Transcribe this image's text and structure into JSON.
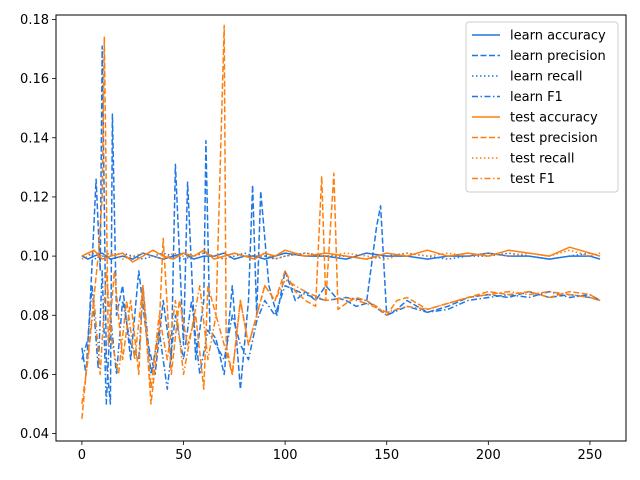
{
  "chart_data": {
    "type": "line",
    "xlim": [
      -12.75,
      267.75
    ],
    "ylim": [
      0.0375,
      0.1815
    ],
    "x_ticks": [
      0,
      50,
      100,
      150,
      200,
      250
    ],
    "y_ticks": [
      0.04,
      0.06,
      0.08,
      0.1,
      0.12,
      0.14,
      0.16,
      0.18
    ],
    "grid": false,
    "legend_position": "upper right",
    "colors": {
      "learn": "#1f77e4",
      "test": "#ff7f0e"
    },
    "series": [
      {
        "name": "learn accuracy",
        "color": "#1f77e4",
        "style": "solid",
        "x": [
          0,
          3,
          6,
          10,
          14,
          20,
          25,
          30,
          35,
          40,
          45,
          50,
          55,
          60,
          65,
          70,
          75,
          80,
          85,
          90,
          95,
          100,
          110,
          120,
          130,
          140,
          150,
          160,
          170,
          180,
          190,
          200,
          210,
          220,
          230,
          240,
          250,
          255
        ],
        "y": [
          0.1,
          0.099,
          0.1,
          0.101,
          0.099,
          0.1,
          0.099,
          0.101,
          0.1,
          0.099,
          0.1,
          0.101,
          0.099,
          0.1,
          0.1,
          0.101,
          0.099,
          0.1,
          0.1,
          0.099,
          0.1,
          0.101,
          0.1,
          0.1,
          0.099,
          0.101,
          0.1,
          0.1,
          0.099,
          0.1,
          0.1,
          0.101,
          0.1,
          0.1,
          0.099,
          0.1,
          0.1,
          0.099
        ]
      },
      {
        "name": "learn precision",
        "color": "#1f77e4",
        "style": "dashed",
        "x": [
          0,
          2,
          4,
          7,
          9,
          10,
          12,
          14,
          15,
          17,
          20,
          24,
          28,
          32,
          36,
          40,
          44,
          46,
          50,
          52,
          56,
          60,
          61,
          63,
          66,
          70,
          74,
          78,
          82,
          84,
          86,
          88,
          92,
          96,
          100,
          105,
          110,
          115,
          120,
          125,
          130,
          135,
          140,
          145,
          147,
          150,
          155,
          160,
          170,
          180,
          190,
          200,
          210,
          220,
          230,
          240,
          250,
          255
        ],
        "y": [
          0.069,
          0.06,
          0.083,
          0.126,
          0.095,
          0.171,
          0.065,
          0.05,
          0.148,
          0.08,
          0.09,
          0.065,
          0.095,
          0.072,
          0.06,
          0.085,
          0.065,
          0.131,
          0.07,
          0.125,
          0.065,
          0.085,
          0.139,
          0.075,
          0.072,
          0.06,
          0.09,
          0.055,
          0.085,
          0.124,
          0.08,
          0.122,
          0.09,
          0.08,
          0.095,
          0.085,
          0.088,
          0.085,
          0.09,
          0.086,
          0.085,
          0.083,
          0.084,
          0.11,
          0.117,
          0.08,
          0.082,
          0.085,
          0.081,
          0.083,
          0.086,
          0.087,
          0.086,
          0.088,
          0.086,
          0.087,
          0.086,
          0.085
        ]
      },
      {
        "name": "learn recall",
        "color": "#1f77e4",
        "style": "dotted",
        "x": [
          0,
          3,
          6,
          10,
          14,
          20,
          25,
          30,
          35,
          40,
          45,
          50,
          55,
          60,
          65,
          70,
          75,
          80,
          85,
          90,
          95,
          100,
          110,
          120,
          130,
          140,
          150,
          160,
          170,
          180,
          190,
          200,
          210,
          220,
          230,
          240,
          250,
          255
        ],
        "y": [
          0.1,
          0.101,
          0.099,
          0.1,
          0.1,
          0.101,
          0.1,
          0.099,
          0.1,
          0.101,
          0.1,
          0.099,
          0.1,
          0.101,
          0.1,
          0.099,
          0.1,
          0.101,
          0.1,
          0.1,
          0.099,
          0.1,
          0.101,
          0.1,
          0.1,
          0.099,
          0.1,
          0.101,
          0.1,
          0.099,
          0.1,
          0.1,
          0.101,
          0.1,
          0.099,
          0.1,
          0.101,
          0.1
        ]
      },
      {
        "name": "learn F1",
        "color": "#1f77e4",
        "style": "dashdot",
        "x": [
          0,
          3,
          5,
          8,
          10,
          12,
          14,
          17,
          20,
          24,
          28,
          30,
          34,
          38,
          42,
          46,
          50,
          54,
          58,
          62,
          66,
          70,
          74,
          78,
          82,
          86,
          90,
          95,
          100,
          110,
          120,
          130,
          140,
          150,
          160,
          170,
          180,
          190,
          200,
          210,
          220,
          230,
          240,
          250,
          255
        ],
        "y": [
          0.065,
          0.072,
          0.09,
          0.062,
          0.095,
          0.05,
          0.08,
          0.06,
          0.085,
          0.07,
          0.065,
          0.09,
          0.06,
          0.075,
          0.055,
          0.08,
          0.065,
          0.085,
          0.06,
          0.075,
          0.07,
          0.065,
          0.08,
          0.07,
          0.065,
          0.078,
          0.085,
          0.08,
          0.09,
          0.087,
          0.085,
          0.086,
          0.085,
          0.08,
          0.083,
          0.081,
          0.082,
          0.085,
          0.086,
          0.087,
          0.086,
          0.088,
          0.086,
          0.087,
          0.085
        ]
      },
      {
        "name": "test accuracy",
        "color": "#ff7f0e",
        "style": "solid",
        "x": [
          0,
          3,
          6,
          10,
          14,
          20,
          25,
          30,
          35,
          40,
          45,
          50,
          55,
          60,
          65,
          70,
          75,
          80,
          85,
          90,
          95,
          100,
          110,
          120,
          130,
          140,
          150,
          160,
          170,
          180,
          190,
          200,
          210,
          220,
          230,
          240,
          250,
          255
        ],
        "y": [
          0.1,
          0.101,
          0.102,
          0.099,
          0.1,
          0.101,
          0.098,
          0.1,
          0.102,
          0.1,
          0.099,
          0.101,
          0.1,
          0.102,
          0.099,
          0.1,
          0.101,
          0.1,
          0.099,
          0.101,
          0.1,
          0.102,
          0.1,
          0.101,
          0.1,
          0.099,
          0.101,
          0.1,
          0.102,
          0.1,
          0.101,
          0.1,
          0.102,
          0.101,
          0.1,
          0.103,
          0.101,
          0.1
        ]
      },
      {
        "name": "test precision",
        "color": "#ff7f0e",
        "style": "dashed",
        "x": [
          0,
          2,
          5,
          8,
          10,
          11,
          13,
          16,
          20,
          24,
          28,
          30,
          34,
          38,
          40,
          44,
          48,
          52,
          56,
          60,
          62,
          66,
          70,
          71,
          74,
          78,
          82,
          86,
          90,
          95,
          100,
          105,
          110,
          115,
          118,
          120,
          124,
          126,
          130,
          135,
          140,
          145,
          150,
          155,
          160,
          170,
          180,
          190,
          200,
          210,
          220,
          230,
          240,
          250,
          255
        ],
        "y": [
          0.045,
          0.06,
          0.08,
          0.1,
          0.12,
          0.174,
          0.07,
          0.095,
          0.065,
          0.085,
          0.06,
          0.09,
          0.05,
          0.075,
          0.106,
          0.06,
          0.085,
          0.07,
          0.08,
          0.055,
          0.09,
          0.08,
          0.178,
          0.07,
          0.06,
          0.085,
          0.07,
          0.08,
          0.09,
          0.085,
          0.095,
          0.088,
          0.085,
          0.083,
          0.127,
          0.085,
          0.128,
          0.082,
          0.084,
          0.086,
          0.085,
          0.083,
          0.08,
          0.085,
          0.086,
          0.082,
          0.084,
          0.086,
          0.088,
          0.087,
          0.088,
          0.086,
          0.088,
          0.087,
          0.085
        ]
      },
      {
        "name": "test recall",
        "color": "#ff7f0e",
        "style": "dotted",
        "x": [
          0,
          3,
          6,
          10,
          14,
          20,
          25,
          30,
          35,
          40,
          45,
          50,
          55,
          60,
          65,
          70,
          75,
          80,
          85,
          90,
          95,
          100,
          110,
          120,
          130,
          140,
          150,
          160,
          170,
          180,
          190,
          200,
          210,
          220,
          230,
          240,
          250,
          255
        ],
        "y": [
          0.099,
          0.1,
          0.101,
          0.1,
          0.101,
          0.099,
          0.1,
          0.101,
          0.1,
          0.099,
          0.101,
          0.1,
          0.1,
          0.101,
          0.1,
          0.099,
          0.101,
          0.1,
          0.1,
          0.101,
          0.099,
          0.1,
          0.101,
          0.1,
          0.101,
          0.1,
          0.099,
          0.101,
          0.1,
          0.101,
          0.1,
          0.101,
          0.1,
          0.101,
          0.1,
          0.102,
          0.1,
          0.101
        ]
      },
      {
        "name": "test F1",
        "color": "#ff7f0e",
        "style": "dashdot",
        "x": [
          0,
          3,
          6,
          9,
          12,
          15,
          18,
          22,
          26,
          30,
          34,
          38,
          42,
          46,
          50,
          54,
          58,
          62,
          66,
          70,
          74,
          78,
          82,
          86,
          90,
          95,
          100,
          110,
          120,
          130,
          140,
          150,
          160,
          170,
          180,
          190,
          200,
          210,
          220,
          230,
          240,
          250,
          255
        ],
        "y": [
          0.05,
          0.065,
          0.085,
          0.06,
          0.095,
          0.07,
          0.06,
          0.085,
          0.065,
          0.09,
          0.055,
          0.08,
          0.065,
          0.085,
          0.06,
          0.075,
          0.09,
          0.065,
          0.08,
          0.07,
          0.06,
          0.085,
          0.07,
          0.08,
          0.09,
          0.085,
          0.092,
          0.088,
          0.085,
          0.086,
          0.084,
          0.081,
          0.083,
          0.082,
          0.084,
          0.086,
          0.087,
          0.088,
          0.087,
          0.088,
          0.087,
          0.086,
          0.085
        ]
      }
    ]
  }
}
